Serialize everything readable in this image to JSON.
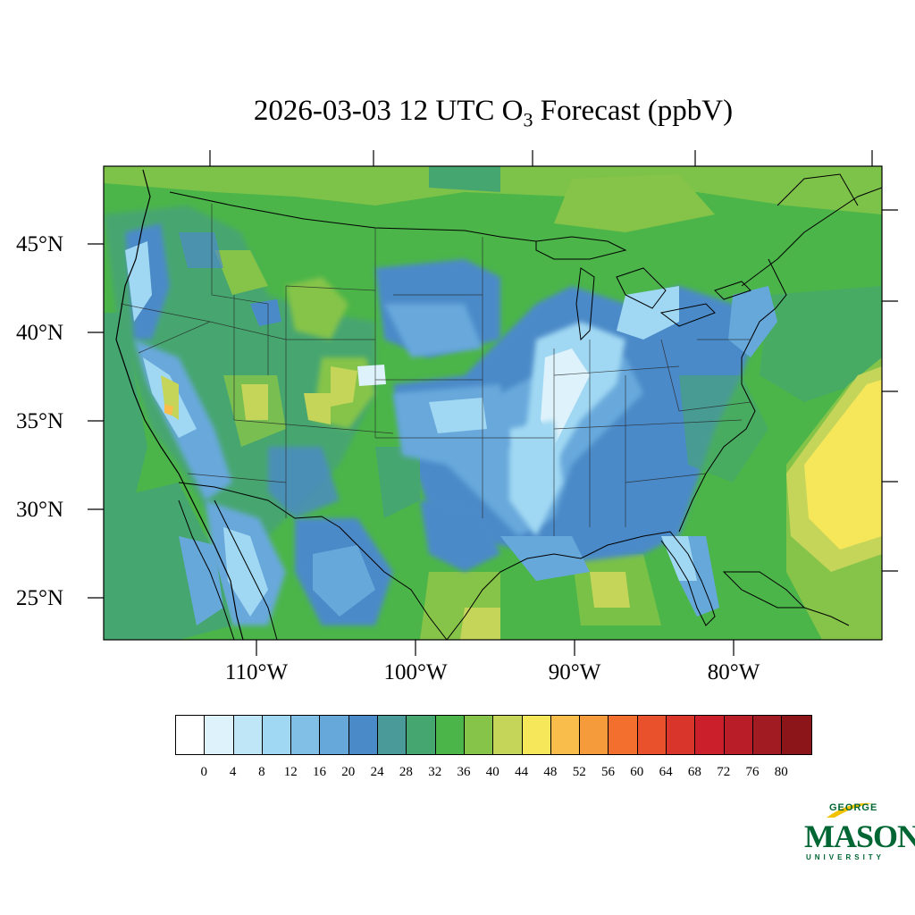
{
  "title": {
    "main": "2026-03-03 12 UTC O",
    "subscript": "3",
    "suffix": " Forecast (ppbV)"
  },
  "axes": {
    "lat_labels": [
      "45°N",
      "40°N",
      "35°N",
      "30°N",
      "25°N"
    ],
    "lon_labels": [
      "110°W",
      "100°W",
      "90°W",
      "80°W"
    ]
  },
  "colorbar": {
    "labels": [
      "0",
      "4",
      "8",
      "12",
      "16",
      "20",
      "24",
      "28",
      "32",
      "36",
      "40",
      "44",
      "48",
      "52",
      "56",
      "60",
      "64",
      "68",
      "72",
      "76",
      "80"
    ],
    "colors": [
      "#ffffff",
      "#def2fb",
      "#bfe6f7",
      "#a0d8f3",
      "#82bfe6",
      "#67a8db",
      "#4b8ac8",
      "#4a9a9a",
      "#46a670",
      "#4bb549",
      "#86c449",
      "#c4d55a",
      "#f6e65a",
      "#f8bd4a",
      "#f69b3c",
      "#f36f2e",
      "#e8512c",
      "#d9352b",
      "#cc1f2c",
      "#b81d28",
      "#a11b22",
      "#8b1518"
    ]
  },
  "logo": {
    "line1": "GEORGE",
    "line2": "MASON",
    "line3": "UNIVERSITY"
  },
  "map": {
    "background_color": "#4bb549",
    "region": "Continental United States",
    "colors": {
      "green": "#4bb549",
      "lightgreen": "#86c449",
      "teal": "#46a670",
      "blue": "#4b8ac8",
      "midblue": "#67a8db",
      "lightblue": "#a0d8f3",
      "paleblue": "#def2fb",
      "yellowgreen": "#c4d55a",
      "yellow": "#f6e65a"
    }
  }
}
